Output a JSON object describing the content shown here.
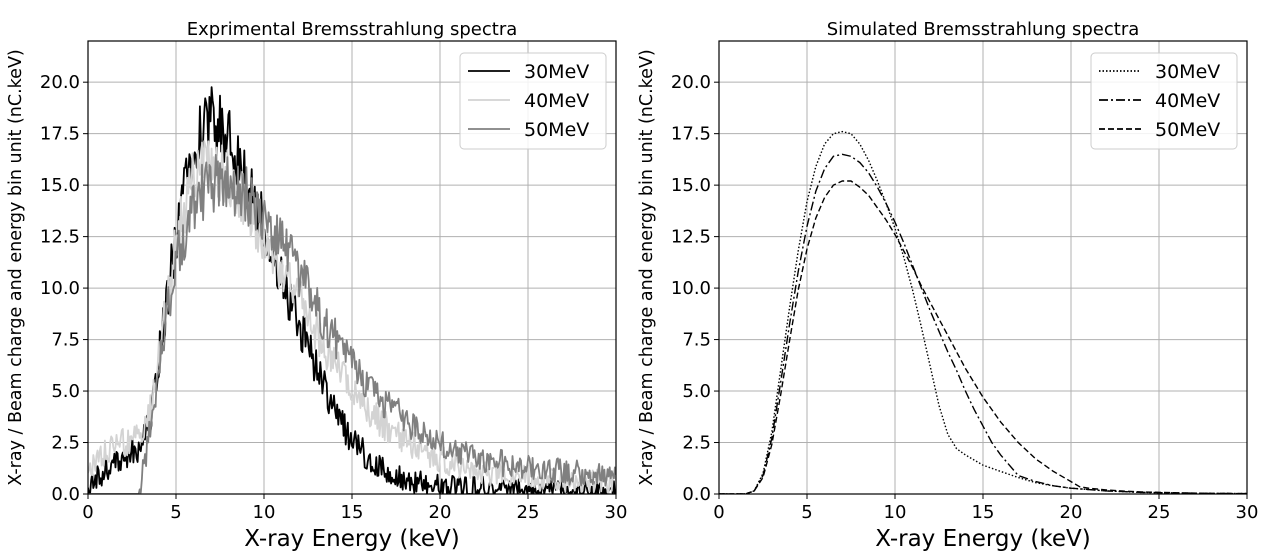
{
  "chart_data": [
    {
      "type": "line",
      "title": "Exprimental Bremsstrahlung spectra",
      "xlabel": "X-ray Energy (keV)",
      "ylabel": "X-ray / Beam charge and energy bin unit (nC.keV)",
      "xlim": [
        0,
        30
      ],
      "ylim": [
        0,
        22
      ],
      "xticks": [
        "0",
        "5",
        "10",
        "15",
        "20",
        "25",
        "30"
      ],
      "yticks": [
        "0.0",
        "2.5",
        "5.0",
        "7.5",
        "10.0",
        "12.5",
        "15.0",
        "17.5",
        "20.0"
      ],
      "grid": true,
      "legend_position": "top-right",
      "noisy": true,
      "series": [
        {
          "name": "30MeV",
          "color": "#000000",
          "dash": "solid",
          "x": [
            0,
            1,
            2,
            3,
            3.5,
            4,
            4.5,
            5,
            5.5,
            6,
            6.5,
            7,
            7.5,
            8,
            8.5,
            9,
            9.5,
            10,
            10.5,
            11,
            11.5,
            12,
            12.5,
            13,
            13.5,
            14,
            15,
            16,
            17,
            18,
            19,
            20,
            21,
            22,
            23,
            24,
            25,
            26,
            27,
            28,
            29,
            30
          ],
          "y": [
            0.3,
            1.2,
            1.8,
            2.3,
            3.5,
            6.5,
            9.5,
            12.5,
            15.0,
            16.8,
            17.8,
            18.2,
            17.8,
            17.2,
            16.0,
            15.0,
            14.0,
            13.0,
            11.7,
            10.5,
            9.3,
            8.2,
            7.2,
            6.0,
            5.0,
            4.0,
            2.6,
            1.7,
            1.1,
            0.7,
            0.5,
            0.4,
            0.3,
            0.3,
            0.25,
            0.2,
            0.2,
            0.2,
            0.15,
            0.15,
            0.1,
            0.1
          ]
        },
        {
          "name": "40MeV",
          "color": "#d3d3d3",
          "dash": "solid",
          "x": [
            0,
            1,
            2,
            3,
            3.5,
            4,
            4.5,
            5,
            5.5,
            6,
            6.5,
            7,
            7.5,
            8,
            8.5,
            9,
            9.5,
            10,
            10.5,
            11,
            11.5,
            12,
            12.5,
            13,
            13.5,
            14,
            15,
            16,
            17,
            18,
            19,
            20,
            21,
            22,
            23,
            24,
            25,
            26,
            27,
            28,
            29,
            30
          ],
          "y": [
            1.0,
            2.0,
            2.5,
            2.8,
            3.8,
            6.5,
            9.3,
            12.0,
            14.0,
            15.3,
            16.0,
            16.0,
            15.7,
            15.2,
            14.6,
            14.0,
            13.3,
            12.6,
            11.8,
            11.0,
            10.2,
            9.4,
            8.6,
            7.8,
            7.0,
            6.3,
            5.0,
            4.0,
            3.2,
            2.6,
            2.1,
            1.7,
            1.4,
            1.2,
            1.0,
            0.9,
            0.8,
            0.7,
            0.7,
            0.6,
            0.6,
            0.5
          ]
        },
        {
          "name": "50MeV",
          "color": "#808080",
          "dash": "solid",
          "x": [
            0,
            1,
            2,
            2.9,
            3.1,
            3.5,
            4,
            4.5,
            5,
            5.5,
            6,
            6.5,
            7,
            7.5,
            8,
            8.5,
            9,
            9.5,
            10,
            10.5,
            11,
            11.5,
            12,
            12.5,
            13,
            13.5,
            14,
            15,
            16,
            17,
            18,
            19,
            20,
            21,
            22,
            23,
            24,
            25,
            26,
            27,
            28,
            29,
            30
          ],
          "y": [
            0,
            0,
            0,
            0,
            1.0,
            3.0,
            6.0,
            8.8,
            11.0,
            12.8,
            14.0,
            14.7,
            15.0,
            15.1,
            15.0,
            14.8,
            14.5,
            14.1,
            13.6,
            13.0,
            12.3,
            11.5,
            10.7,
            9.9,
            9.1,
            8.3,
            7.6,
            6.3,
            5.2,
            4.3,
            3.6,
            3.0,
            2.5,
            2.1,
            1.8,
            1.6,
            1.4,
            1.3,
            1.2,
            1.1,
            1.0,
            0.9,
            0.8
          ]
        }
      ]
    },
    {
      "type": "line",
      "title": "Simulated Bremsstrahlung spectra",
      "xlabel": "X-ray Energy (keV)",
      "ylabel": "X-ray / Beam charge and energy bin unit (nC.keV)",
      "xlim": [
        0,
        30
      ],
      "ylim": [
        0,
        22
      ],
      "xticks": [
        "0",
        "5",
        "10",
        "15",
        "20",
        "25",
        "30"
      ],
      "yticks": [
        "0.0",
        "2.5",
        "5.0",
        "7.5",
        "10.0",
        "12.5",
        "15.0",
        "17.5",
        "20.0"
      ],
      "grid": true,
      "legend_position": "top-right",
      "noisy": false,
      "series": [
        {
          "name": "30MeV",
          "color": "#000000",
          "dash": "dotted",
          "x": [
            0,
            1.5,
            2.0,
            2.5,
            3,
            3.5,
            4,
            4.5,
            5,
            5.5,
            6,
            6.5,
            7,
            7.5,
            8,
            8.5,
            9,
            9.5,
            10,
            10.5,
            11,
            11.5,
            12,
            12.5,
            13,
            13.5,
            14,
            15,
            16,
            17,
            18,
            19,
            20,
            22,
            24,
            26,
            28,
            30
          ],
          "y": [
            0,
            0,
            0.15,
            1.0,
            3.0,
            6.0,
            9.0,
            11.8,
            14.2,
            15.9,
            17.0,
            17.5,
            17.6,
            17.5,
            17.0,
            16.2,
            15.2,
            14.1,
            12.9,
            11.5,
            9.9,
            8.1,
            6.2,
            4.3,
            2.9,
            2.2,
            1.9,
            1.4,
            1.1,
            0.8,
            0.55,
            0.4,
            0.28,
            0.15,
            0.08,
            0.05,
            0.03,
            0.02
          ]
        },
        {
          "name": "40MeV",
          "color": "#000000",
          "dash": "dashdot",
          "x": [
            0,
            1.5,
            2.0,
            2.5,
            3,
            3.5,
            4,
            4.5,
            5,
            5.5,
            6,
            6.5,
            7,
            7.5,
            8,
            8.5,
            9,
            9.5,
            10,
            10.5,
            11,
            11.5,
            12,
            12.5,
            13,
            13.5,
            14,
            14.5,
            15,
            15.5,
            16,
            16.5,
            17,
            18,
            19,
            20,
            22,
            24,
            26,
            28,
            30
          ],
          "y": [
            0,
            0,
            0.15,
            0.9,
            2.7,
            5.4,
            8.2,
            10.8,
            13.0,
            14.7,
            15.8,
            16.4,
            16.5,
            16.4,
            16.1,
            15.6,
            14.9,
            14.1,
            13.2,
            12.2,
            11.1,
            10.0,
            8.9,
            7.9,
            6.9,
            6.0,
            5.0,
            4.1,
            3.3,
            2.5,
            1.9,
            1.4,
            0.9,
            0.6,
            0.4,
            0.28,
            0.15,
            0.08,
            0.05,
            0.03,
            0.02
          ]
        },
        {
          "name": "50MeV",
          "color": "#000000",
          "dash": "dashed",
          "x": [
            0,
            1.5,
            2.0,
            2.5,
            3,
            3.5,
            4,
            4.5,
            5,
            5.5,
            6,
            6.5,
            7,
            7.5,
            8,
            8.5,
            9,
            9.5,
            10,
            10.5,
            11,
            11.5,
            12,
            12.5,
            13,
            13.5,
            14,
            15,
            16,
            17,
            18,
            19,
            20,
            20.5,
            21,
            22,
            23,
            24,
            26,
            28,
            30
          ],
          "y": [
            0,
            0,
            0.15,
            0.8,
            2.4,
            4.8,
            7.4,
            9.9,
            11.9,
            13.4,
            14.4,
            15.0,
            15.2,
            15.2,
            14.9,
            14.5,
            13.9,
            13.3,
            12.6,
            11.8,
            11.0,
            10.1,
            9.3,
            8.5,
            7.7,
            6.9,
            6.1,
            4.7,
            3.5,
            2.5,
            1.7,
            1.1,
            0.6,
            0.35,
            0.28,
            0.2,
            0.14,
            0.1,
            0.06,
            0.03,
            0.02
          ]
        }
      ]
    }
  ]
}
